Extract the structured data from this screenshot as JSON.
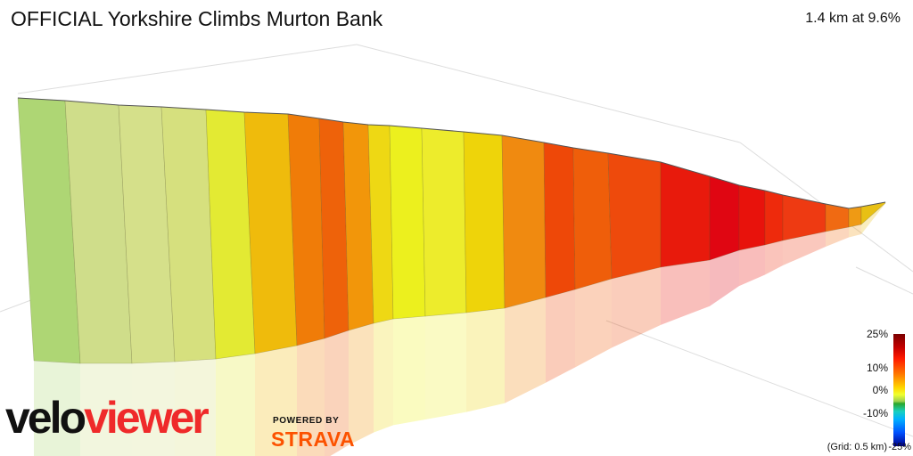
{
  "header": {
    "title": "OFFICIAL Yorkshire Climbs Murton Bank",
    "summary": "1.4 km at 9.6%"
  },
  "legend": {
    "ticks": [
      "25%",
      "10%",
      "0%",
      "-10%",
      "-25%"
    ],
    "grid_note": "(Grid: 0.5 km)"
  },
  "branding": {
    "logo_part1": "velo",
    "logo_part2": "viewer",
    "powered_by": "POWERED BY",
    "strava": "STRAVA"
  },
  "chart_data": {
    "type": "area",
    "title": "OFFICIAL Yorkshire Climbs Murton Bank",
    "distance_km": 1.4,
    "average_gradient_pct": 9.6,
    "grid_spacing_km": 0.5,
    "gradient_scale_pct": [
      -25,
      25
    ],
    "segments": [
      {
        "color": "#aed674"
      },
      {
        "color": "#cfdd8a"
      },
      {
        "color": "#d5e08a"
      },
      {
        "color": "#d6e07e"
      },
      {
        "color": "#e3ea33"
      },
      {
        "color": "#efbb0c"
      },
      {
        "color": "#f07c08"
      },
      {
        "color": "#ee620a"
      },
      {
        "color": "#f2960a"
      },
      {
        "color": "#eed814"
      },
      {
        "color": "#ecf01e"
      },
      {
        "color": "#edec2c"
      },
      {
        "color": "#eed40a"
      },
      {
        "color": "#f08a10"
      },
      {
        "color": "#ee4808"
      },
      {
        "color": "#ef5e0a"
      },
      {
        "color": "#ee4a0c"
      },
      {
        "color": "#e81a0c"
      },
      {
        "color": "#e00612"
      },
      {
        "color": "#e8120c"
      },
      {
        "color": "#ee2a0c"
      },
      {
        "color": "#ee3a12"
      },
      {
        "color": "#f06a12"
      },
      {
        "color": "#ef9a14"
      },
      {
        "color": "#e8c014"
      }
    ]
  }
}
